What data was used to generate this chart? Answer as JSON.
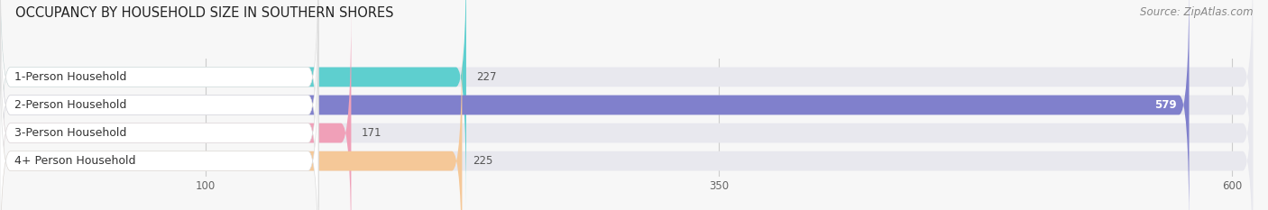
{
  "title": "OCCUPANCY BY HOUSEHOLD SIZE IN SOUTHERN SHORES",
  "source": "Source: ZipAtlas.com",
  "categories": [
    "1-Person Household",
    "2-Person Household",
    "3-Person Household",
    "4+ Person Household"
  ],
  "values": [
    227,
    579,
    171,
    225
  ],
  "colors": [
    "#5ecfcf",
    "#8080cc",
    "#f0a0b8",
    "#f5c898"
  ],
  "bar_bg_color": "#e8e8ee",
  "xlim": [
    0,
    610
  ],
  "xticks": [
    100,
    350,
    600
  ],
  "title_fontsize": 10.5,
  "label_fontsize": 9,
  "value_fontsize": 8.5,
  "source_fontsize": 8.5
}
